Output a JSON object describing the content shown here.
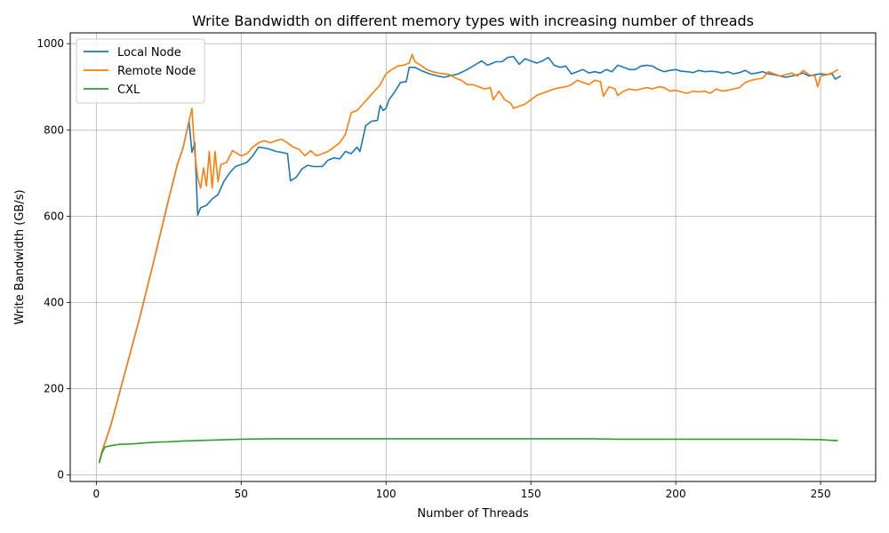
{
  "chart_data": {
    "type": "line",
    "title": "Write Bandwidth on different memory types with increasing number of threads",
    "xlabel": "Number of Threads",
    "ylabel": "Write Bandwidth (GB/s)",
    "xlim": [
      -9,
      269
    ],
    "ylim": [
      -15,
      1025
    ],
    "xticks": [
      0,
      50,
      100,
      150,
      200,
      250
    ],
    "yticks": [
      0,
      200,
      400,
      600,
      800,
      1000
    ],
    "grid": true,
    "legend_position": "upper-left",
    "series": [
      {
        "name": "Local Node",
        "color": "#1f77b4",
        "points": [
          [
            1,
            30
          ],
          [
            2,
            55
          ],
          [
            5,
            115
          ],
          [
            10,
            240
          ],
          [
            15,
            365
          ],
          [
            20,
            500
          ],
          [
            25,
            640
          ],
          [
            28,
            720
          ],
          [
            30,
            760
          ],
          [
            32,
            820
          ],
          [
            33,
            748
          ],
          [
            34,
            770
          ],
          [
            35,
            602
          ],
          [
            36,
            620
          ],
          [
            38,
            625
          ],
          [
            40,
            640
          ],
          [
            42,
            650
          ],
          [
            44,
            680
          ],
          [
            46,
            700
          ],
          [
            48,
            715
          ],
          [
            50,
            720
          ],
          [
            52,
            725
          ],
          [
            54,
            740
          ],
          [
            56,
            760
          ],
          [
            58,
            758
          ],
          [
            60,
            755
          ],
          [
            62,
            750
          ],
          [
            64,
            748
          ],
          [
            66,
            745
          ],
          [
            67,
            682
          ],
          [
            69,
            690
          ],
          [
            71,
            710
          ],
          [
            73,
            718
          ],
          [
            75,
            715
          ],
          [
            78,
            715
          ],
          [
            80,
            730
          ],
          [
            82,
            735
          ],
          [
            84,
            733
          ],
          [
            86,
            750
          ],
          [
            88,
            745
          ],
          [
            90,
            760
          ],
          [
            91,
            750
          ],
          [
            93,
            810
          ],
          [
            95,
            820
          ],
          [
            97,
            822
          ],
          [
            98,
            857
          ],
          [
            99,
            845
          ],
          [
            100,
            850
          ],
          [
            101,
            870
          ],
          [
            103,
            888
          ],
          [
            105,
            910
          ],
          [
            107,
            912
          ],
          [
            108,
            945
          ],
          [
            110,
            945
          ],
          [
            112,
            938
          ],
          [
            115,
            930
          ],
          [
            118,
            925
          ],
          [
            120,
            922
          ],
          [
            125,
            930
          ],
          [
            128,
            940
          ],
          [
            130,
            948
          ],
          [
            133,
            960
          ],
          [
            135,
            950
          ],
          [
            138,
            958
          ],
          [
            140,
            958
          ],
          [
            142,
            968
          ],
          [
            144,
            970
          ],
          [
            146,
            952
          ],
          [
            148,
            965
          ],
          [
            150,
            960
          ],
          [
            152,
            955
          ],
          [
            154,
            960
          ],
          [
            156,
            968
          ],
          [
            158,
            950
          ],
          [
            160,
            945
          ],
          [
            162,
            948
          ],
          [
            164,
            930
          ],
          [
            166,
            935
          ],
          [
            168,
            940
          ],
          [
            170,
            932
          ],
          [
            172,
            935
          ],
          [
            174,
            932
          ],
          [
            176,
            940
          ],
          [
            178,
            935
          ],
          [
            180,
            950
          ],
          [
            182,
            945
          ],
          [
            184,
            940
          ],
          [
            186,
            940
          ],
          [
            188,
            948
          ],
          [
            190,
            950
          ],
          [
            192,
            948
          ],
          [
            194,
            940
          ],
          [
            196,
            935
          ],
          [
            198,
            938
          ],
          [
            200,
            940
          ],
          [
            202,
            936
          ],
          [
            204,
            935
          ],
          [
            206,
            933
          ],
          [
            208,
            938
          ],
          [
            210,
            935
          ],
          [
            212,
            936
          ],
          [
            214,
            935
          ],
          [
            216,
            932
          ],
          [
            218,
            935
          ],
          [
            220,
            930
          ],
          [
            222,
            933
          ],
          [
            224,
            938
          ],
          [
            226,
            930
          ],
          [
            228,
            932
          ],
          [
            230,
            935
          ],
          [
            232,
            930
          ],
          [
            234,
            928
          ],
          [
            236,
            925
          ],
          [
            238,
            922
          ],
          [
            240,
            925
          ],
          [
            242,
            928
          ],
          [
            244,
            932
          ],
          [
            246,
            925
          ],
          [
            248,
            928
          ],
          [
            250,
            930
          ],
          [
            252,
            928
          ],
          [
            254,
            930
          ],
          [
            255,
            918
          ],
          [
            257,
            925
          ]
        ]
      },
      {
        "name": "Remote Node",
        "color": "#ff7f0e",
        "points": [
          [
            1,
            30
          ],
          [
            2,
            55
          ],
          [
            5,
            115
          ],
          [
            10,
            240
          ],
          [
            15,
            365
          ],
          [
            20,
            500
          ],
          [
            25,
            640
          ],
          [
            28,
            720
          ],
          [
            30,
            760
          ],
          [
            32,
            820
          ],
          [
            33,
            850
          ],
          [
            34,
            745
          ],
          [
            35,
            690
          ],
          [
            36,
            665
          ],
          [
            37,
            712
          ],
          [
            38,
            670
          ],
          [
            39,
            750
          ],
          [
            40,
            665
          ],
          [
            41,
            750
          ],
          [
            42,
            680
          ],
          [
            43,
            720
          ],
          [
            45,
            725
          ],
          [
            47,
            752
          ],
          [
            50,
            740
          ],
          [
            52,
            745
          ],
          [
            54,
            760
          ],
          [
            56,
            770
          ],
          [
            58,
            775
          ],
          [
            60,
            770
          ],
          [
            62,
            775
          ],
          [
            64,
            778
          ],
          [
            66,
            770
          ],
          [
            68,
            760
          ],
          [
            70,
            755
          ],
          [
            72,
            740
          ],
          [
            74,
            752
          ],
          [
            76,
            740
          ],
          [
            78,
            745
          ],
          [
            80,
            750
          ],
          [
            82,
            760
          ],
          [
            84,
            770
          ],
          [
            86,
            790
          ],
          [
            88,
            840
          ],
          [
            90,
            845
          ],
          [
            92,
            860
          ],
          [
            94,
            875
          ],
          [
            96,
            890
          ],
          [
            98,
            905
          ],
          [
            100,
            930
          ],
          [
            102,
            940
          ],
          [
            104,
            948
          ],
          [
            106,
            950
          ],
          [
            108,
            955
          ],
          [
            109,
            975
          ],
          [
            110,
            958
          ],
          [
            112,
            950
          ],
          [
            114,
            940
          ],
          [
            116,
            935
          ],
          [
            118,
            932
          ],
          [
            120,
            930
          ],
          [
            122,
            928
          ],
          [
            124,
            920
          ],
          [
            126,
            915
          ],
          [
            128,
            905
          ],
          [
            130,
            905
          ],
          [
            132,
            900
          ],
          [
            134,
            895
          ],
          [
            136,
            898
          ],
          [
            137,
            870
          ],
          [
            139,
            890
          ],
          [
            141,
            870
          ],
          [
            143,
            862
          ],
          [
            144,
            850
          ],
          [
            146,
            855
          ],
          [
            148,
            860
          ],
          [
            150,
            870
          ],
          [
            152,
            880
          ],
          [
            154,
            885
          ],
          [
            156,
            890
          ],
          [
            158,
            895
          ],
          [
            160,
            898
          ],
          [
            162,
            900
          ],
          [
            164,
            905
          ],
          [
            166,
            915
          ],
          [
            168,
            910
          ],
          [
            170,
            905
          ],
          [
            172,
            915
          ],
          [
            174,
            912
          ],
          [
            175,
            878
          ],
          [
            177,
            900
          ],
          [
            179,
            895
          ],
          [
            180,
            880
          ],
          [
            182,
            890
          ],
          [
            184,
            895
          ],
          [
            186,
            892
          ],
          [
            188,
            895
          ],
          [
            190,
            898
          ],
          [
            192,
            895
          ],
          [
            194,
            900
          ],
          [
            196,
            898
          ],
          [
            198,
            890
          ],
          [
            200,
            892
          ],
          [
            202,
            888
          ],
          [
            204,
            885
          ],
          [
            206,
            890
          ],
          [
            208,
            888
          ],
          [
            210,
            890
          ],
          [
            212,
            885
          ],
          [
            214,
            895
          ],
          [
            216,
            890
          ],
          [
            218,
            892
          ],
          [
            220,
            895
          ],
          [
            222,
            898
          ],
          [
            224,
            910
          ],
          [
            226,
            915
          ],
          [
            228,
            918
          ],
          [
            230,
            920
          ],
          [
            232,
            935
          ],
          [
            234,
            930
          ],
          [
            236,
            925
          ],
          [
            238,
            928
          ],
          [
            240,
            932
          ],
          [
            242,
            925
          ],
          [
            244,
            938
          ],
          [
            246,
            928
          ],
          [
            248,
            925
          ],
          [
            249,
            900
          ],
          [
            250,
            925
          ],
          [
            252,
            928
          ],
          [
            254,
            932
          ],
          [
            256,
            940
          ]
        ]
      },
      {
        "name": "CXL",
        "color": "#2ca02c",
        "points": [
          [
            1,
            28
          ],
          [
            2,
            52
          ],
          [
            3,
            65
          ],
          [
            5,
            68
          ],
          [
            8,
            71
          ],
          [
            12,
            72
          ],
          [
            16,
            74
          ],
          [
            20,
            76
          ],
          [
            25,
            77
          ],
          [
            30,
            79
          ],
          [
            35,
            80
          ],
          [
            40,
            81
          ],
          [
            45,
            82
          ],
          [
            50,
            83
          ],
          [
            60,
            84
          ],
          [
            70,
            84
          ],
          [
            80,
            84
          ],
          [
            90,
            84
          ],
          [
            100,
            84
          ],
          [
            110,
            84
          ],
          [
            120,
            84
          ],
          [
            130,
            84
          ],
          [
            140,
            84
          ],
          [
            150,
            84
          ],
          [
            160,
            84
          ],
          [
            170,
            84
          ],
          [
            180,
            83
          ],
          [
            190,
            83
          ],
          [
            200,
            83
          ],
          [
            210,
            83
          ],
          [
            220,
            83
          ],
          [
            230,
            83
          ],
          [
            240,
            83
          ],
          [
            250,
            82
          ],
          [
            255,
            80
          ],
          [
            256,
            80
          ]
        ]
      }
    ]
  }
}
